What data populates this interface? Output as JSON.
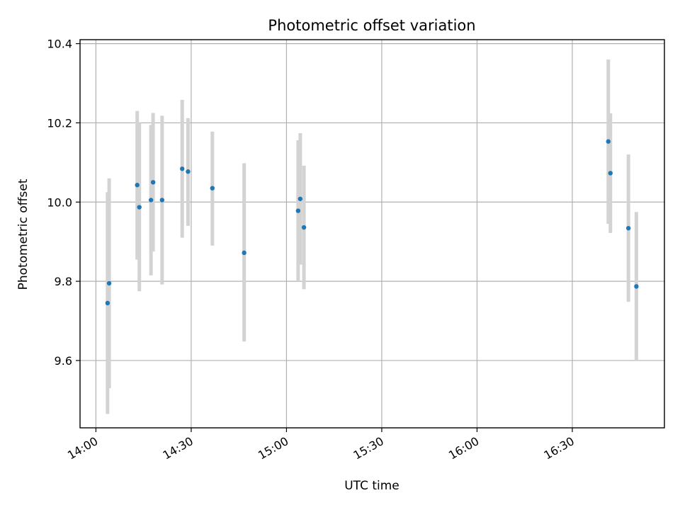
{
  "chart_data": {
    "type": "scatter",
    "title": "Photometric offset variation",
    "xlabel": "UTC time",
    "ylabel": "Photometric offset",
    "grid": true,
    "colors": {
      "points": "#1f77b4",
      "errorbars": "#d3d3d3"
    },
    "x_ticks": [
      "14:00",
      "14:30",
      "15:00",
      "15:30",
      "16:00",
      "16:30"
    ],
    "x_tick_minutes": [
      0,
      30,
      60,
      90,
      120,
      150
    ],
    "xlim_minutes": [
      -5,
      179
    ],
    "y_ticks": [
      "9.6",
      "9.8",
      "10.0",
      "10.2",
      "10.4"
    ],
    "y_tick_values": [
      9.6,
      9.8,
      10.0,
      10.2,
      10.4
    ],
    "ylim": [
      9.43,
      10.41
    ],
    "points": [
      {
        "t": "14:03:40",
        "y": 9.745,
        "err_low": 9.465,
        "err_high": 10.025
      },
      {
        "t": "14:04:10",
        "y": 9.795,
        "err_low": 9.53,
        "err_high": 10.06
      },
      {
        "t": "14:13:00",
        "y": 10.043,
        "err_low": 9.855,
        "err_high": 10.23
      },
      {
        "t": "14:13:40",
        "y": 9.987,
        "err_low": 9.775,
        "err_high": 10.2
      },
      {
        "t": "14:17:20",
        "y": 10.005,
        "err_low": 9.815,
        "err_high": 10.195
      },
      {
        "t": "14:18:00",
        "y": 10.05,
        "err_low": 9.875,
        "err_high": 10.225
      },
      {
        "t": "14:20:50",
        "y": 10.005,
        "err_low": 9.792,
        "err_high": 10.218
      },
      {
        "t": "14:27:10",
        "y": 10.084,
        "err_low": 9.91,
        "err_high": 10.258
      },
      {
        "t": "14:29:00",
        "y": 10.077,
        "err_low": 9.94,
        "err_high": 10.212
      },
      {
        "t": "14:36:40",
        "y": 10.035,
        "err_low": 9.89,
        "err_high": 10.178
      },
      {
        "t": "14:46:40",
        "y": 9.872,
        "err_low": 9.648,
        "err_high": 10.098
      },
      {
        "t": "15:03:40",
        "y": 9.978,
        "err_low": 9.8,
        "err_high": 10.156
      },
      {
        "t": "15:04:20",
        "y": 10.008,
        "err_low": 9.842,
        "err_high": 10.174
      },
      {
        "t": "15:05:30",
        "y": 9.936,
        "err_low": 9.78,
        "err_high": 10.092
      },
      {
        "t": "16:41:20",
        "y": 10.153,
        "err_low": 9.945,
        "err_high": 10.36
      },
      {
        "t": "16:42:00",
        "y": 10.073,
        "err_low": 9.922,
        "err_high": 10.224
      },
      {
        "t": "16:47:40",
        "y": 9.934,
        "err_low": 9.748,
        "err_high": 10.12
      },
      {
        "t": "16:50:10",
        "y": 9.787,
        "err_low": 9.6,
        "err_high": 9.975
      }
    ]
  }
}
